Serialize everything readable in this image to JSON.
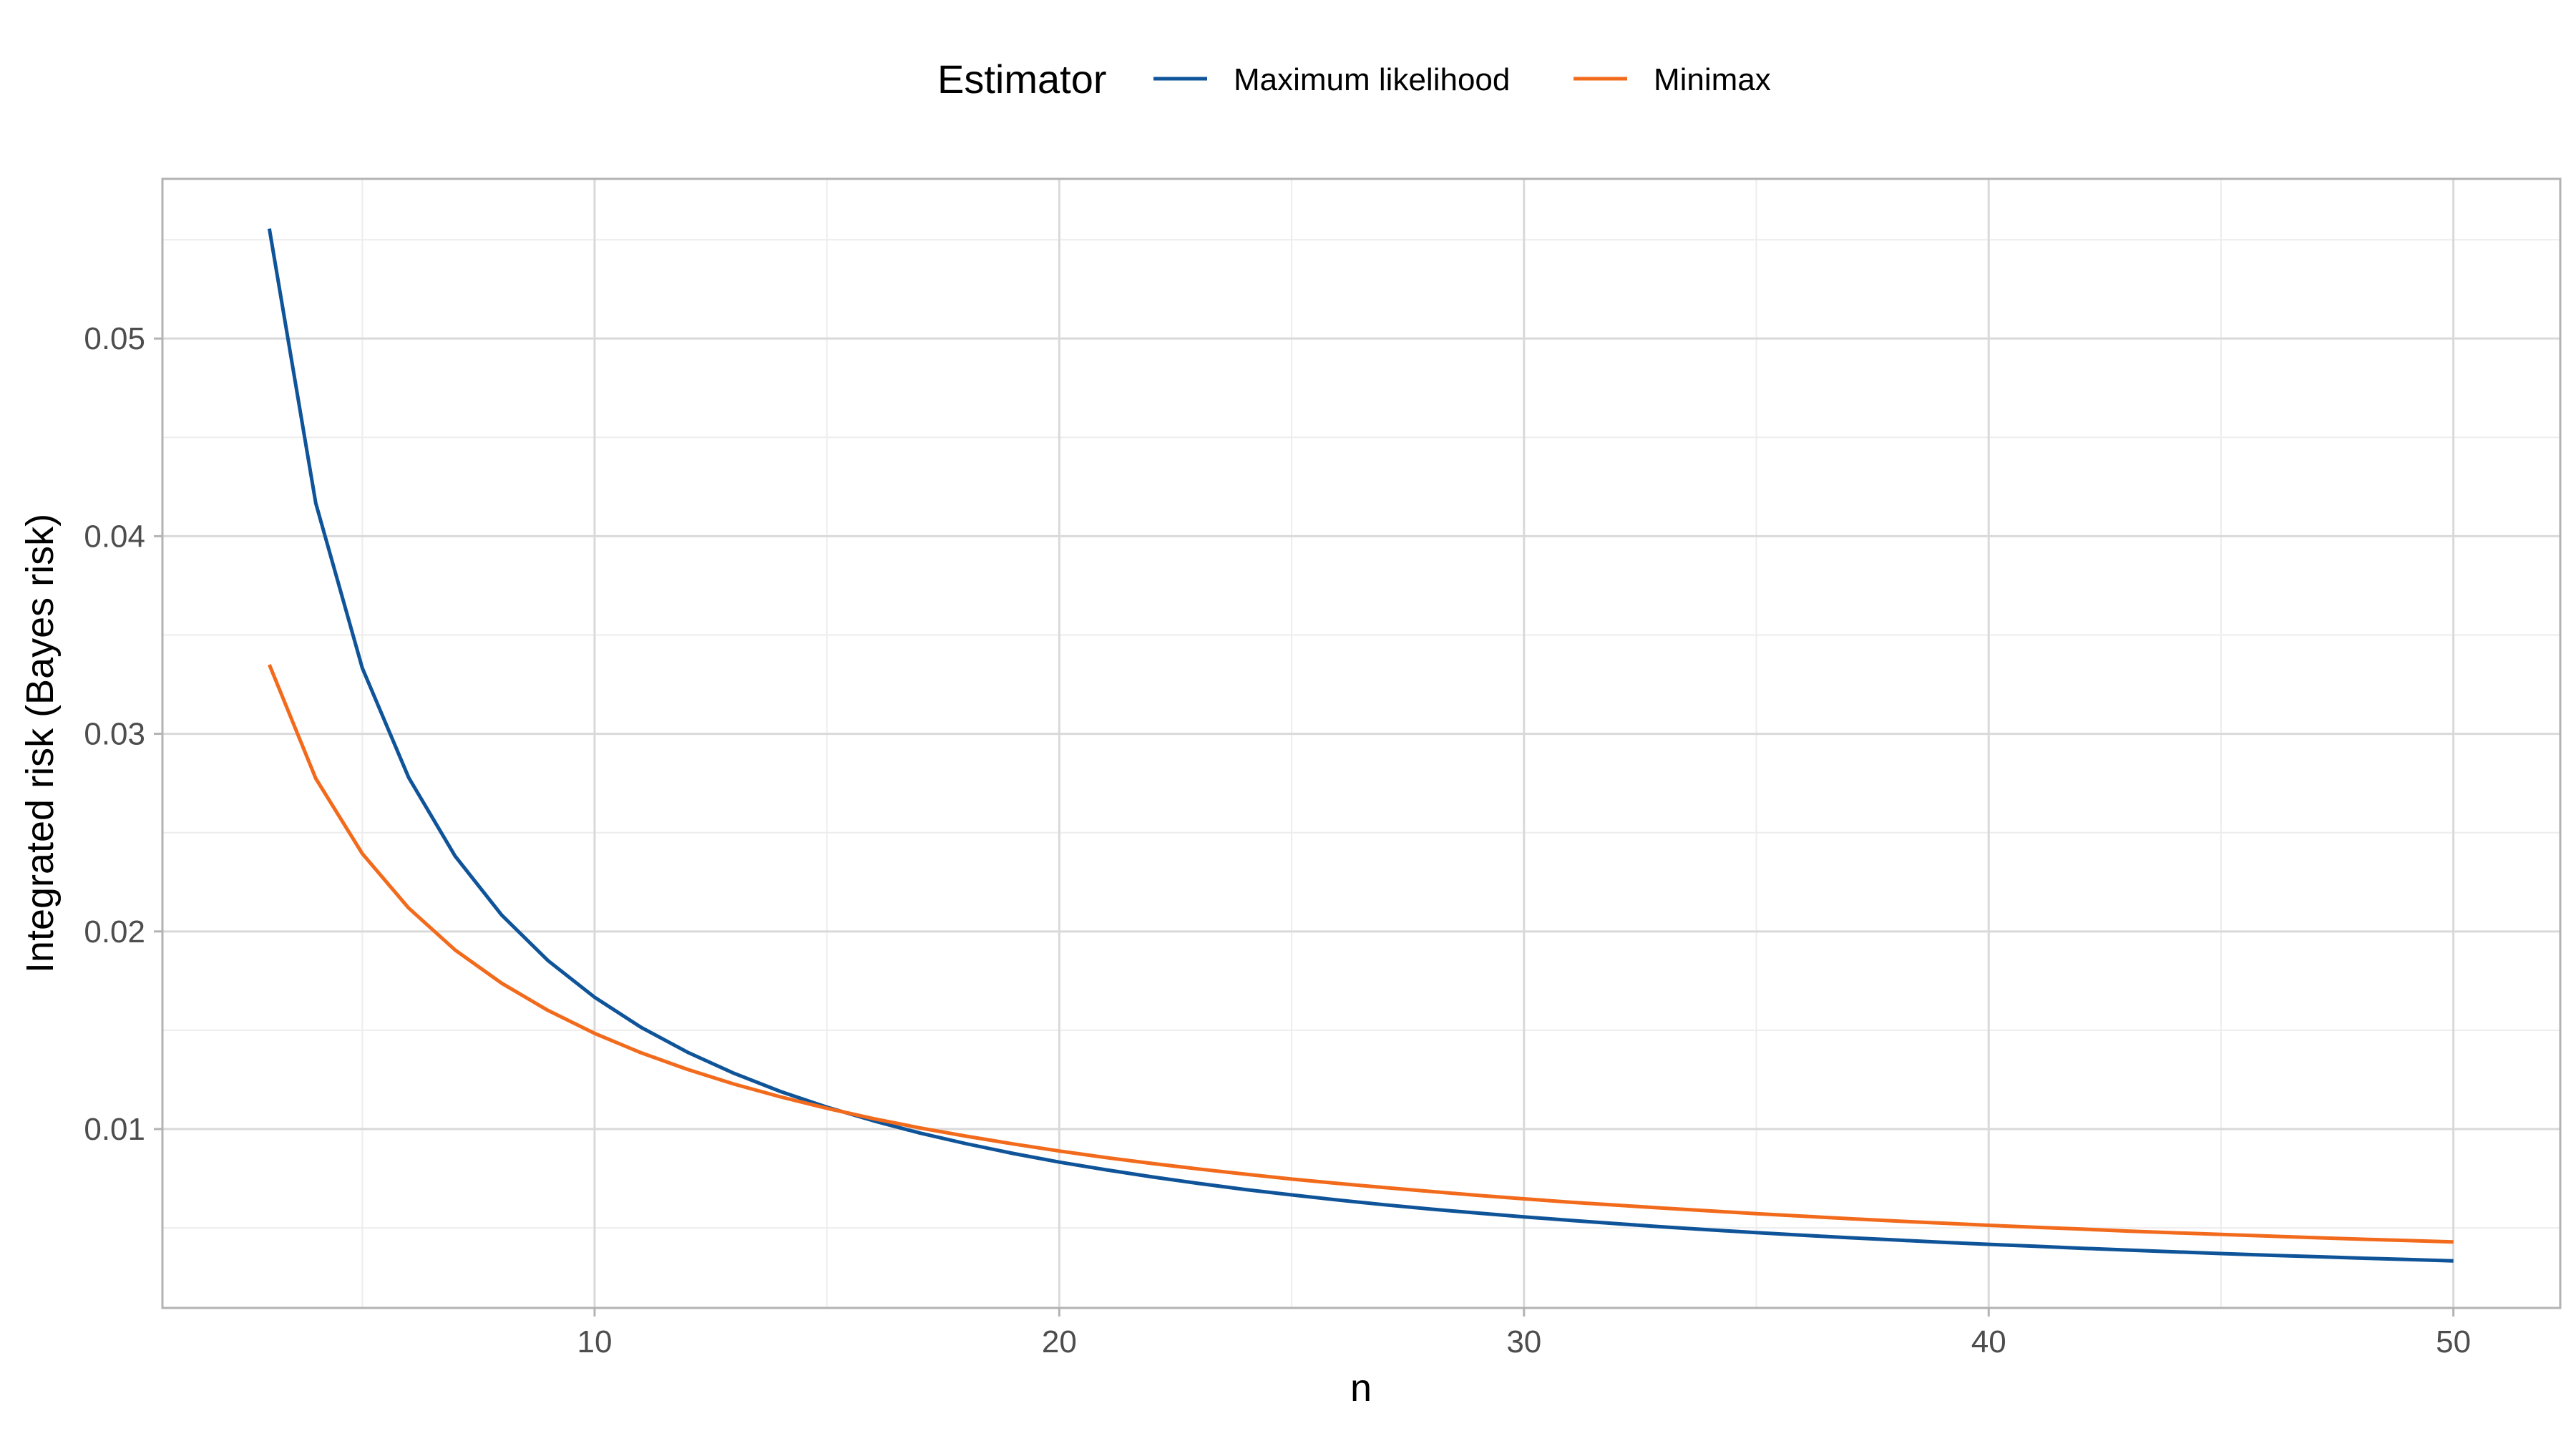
{
  "legend": {
    "title": "Estimator",
    "position": "top"
  },
  "chart_data": {
    "type": "line",
    "xlabel": "n",
    "ylabel": "Integrated risk (Bayes risk)",
    "xlim": [
      0.7,
      52.3
    ],
    "ylim": [
      0.00095,
      0.05808
    ],
    "x_ticks": [
      10,
      20,
      30,
      40,
      50
    ],
    "x_tick_labels": [
      "10",
      "20",
      "30",
      "40",
      "50"
    ],
    "x_minor_ticks": [
      5,
      15,
      25,
      35,
      45
    ],
    "y_ticks": [
      0.01,
      0.02,
      0.03,
      0.04,
      0.05
    ],
    "y_tick_labels": [
      "0.01",
      "0.02",
      "0.03",
      "0.04",
      "0.05"
    ],
    "y_minor_ticks": [
      0.005,
      0.015,
      0.025,
      0.035,
      0.045,
      0.055
    ],
    "grid": true,
    "series": [
      {
        "name": "Maximum likelihood",
        "color": "#0F5499",
        "x": [
          3,
          4,
          5,
          6,
          7,
          8,
          9,
          10,
          11,
          12,
          13,
          14,
          15,
          16,
          17,
          18,
          19,
          20,
          21,
          22,
          23,
          24,
          25,
          26,
          27,
          28,
          29,
          30,
          31,
          32,
          33,
          34,
          35,
          36,
          37,
          38,
          39,
          40,
          41,
          42,
          43,
          44,
          45,
          46,
          47,
          48,
          49,
          50
        ],
        "y": [
          0.05556,
          0.04167,
          0.03333,
          0.02778,
          0.02381,
          0.02083,
          0.01852,
          0.01667,
          0.01515,
          0.01389,
          0.01282,
          0.0119,
          0.01111,
          0.01042,
          0.0098,
          0.00926,
          0.00877,
          0.00833,
          0.00794,
          0.00758,
          0.00725,
          0.00694,
          0.00667,
          0.00641,
          0.00617,
          0.00595,
          0.00575,
          0.00556,
          0.00538,
          0.00521,
          0.00505,
          0.0049,
          0.00476,
          0.00463,
          0.0045,
          0.00439,
          0.00427,
          0.00417,
          0.00407,
          0.00397,
          0.00388,
          0.00379,
          0.0037,
          0.00362,
          0.00355,
          0.00347,
          0.0034,
          0.00333
        ]
      },
      {
        "name": "Minimax",
        "color": "#F26B1D",
        "x": [
          3,
          4,
          5,
          6,
          7,
          8,
          9,
          10,
          11,
          12,
          13,
          14,
          15,
          16,
          17,
          18,
          19,
          20,
          21,
          22,
          23,
          24,
          25,
          26,
          27,
          28,
          29,
          30,
          31,
          32,
          33,
          34,
          35,
          36,
          37,
          38,
          39,
          40,
          41,
          42,
          43,
          44,
          45,
          46,
          47,
          48,
          49,
          50
        ],
        "y": [
          0.0335,
          0.02774,
          0.02394,
          0.02118,
          0.01906,
          0.01738,
          0.016,
          0.01484,
          0.01386,
          0.01302,
          0.01228,
          0.01163,
          0.01105,
          0.01053,
          0.01006,
          0.00964,
          0.00925,
          0.00889,
          0.00856,
          0.00826,
          0.00798,
          0.00772,
          0.00747,
          0.00725,
          0.00704,
          0.00684,
          0.00665,
          0.00647,
          0.0063,
          0.00615,
          0.006,
          0.00586,
          0.00572,
          0.00559,
          0.00547,
          0.00535,
          0.00524,
          0.00513,
          0.00503,
          0.00494,
          0.00484,
          0.00475,
          0.00467,
          0.00459,
          0.00451,
          0.00443,
          0.00436,
          0.00429
        ]
      }
    ]
  }
}
